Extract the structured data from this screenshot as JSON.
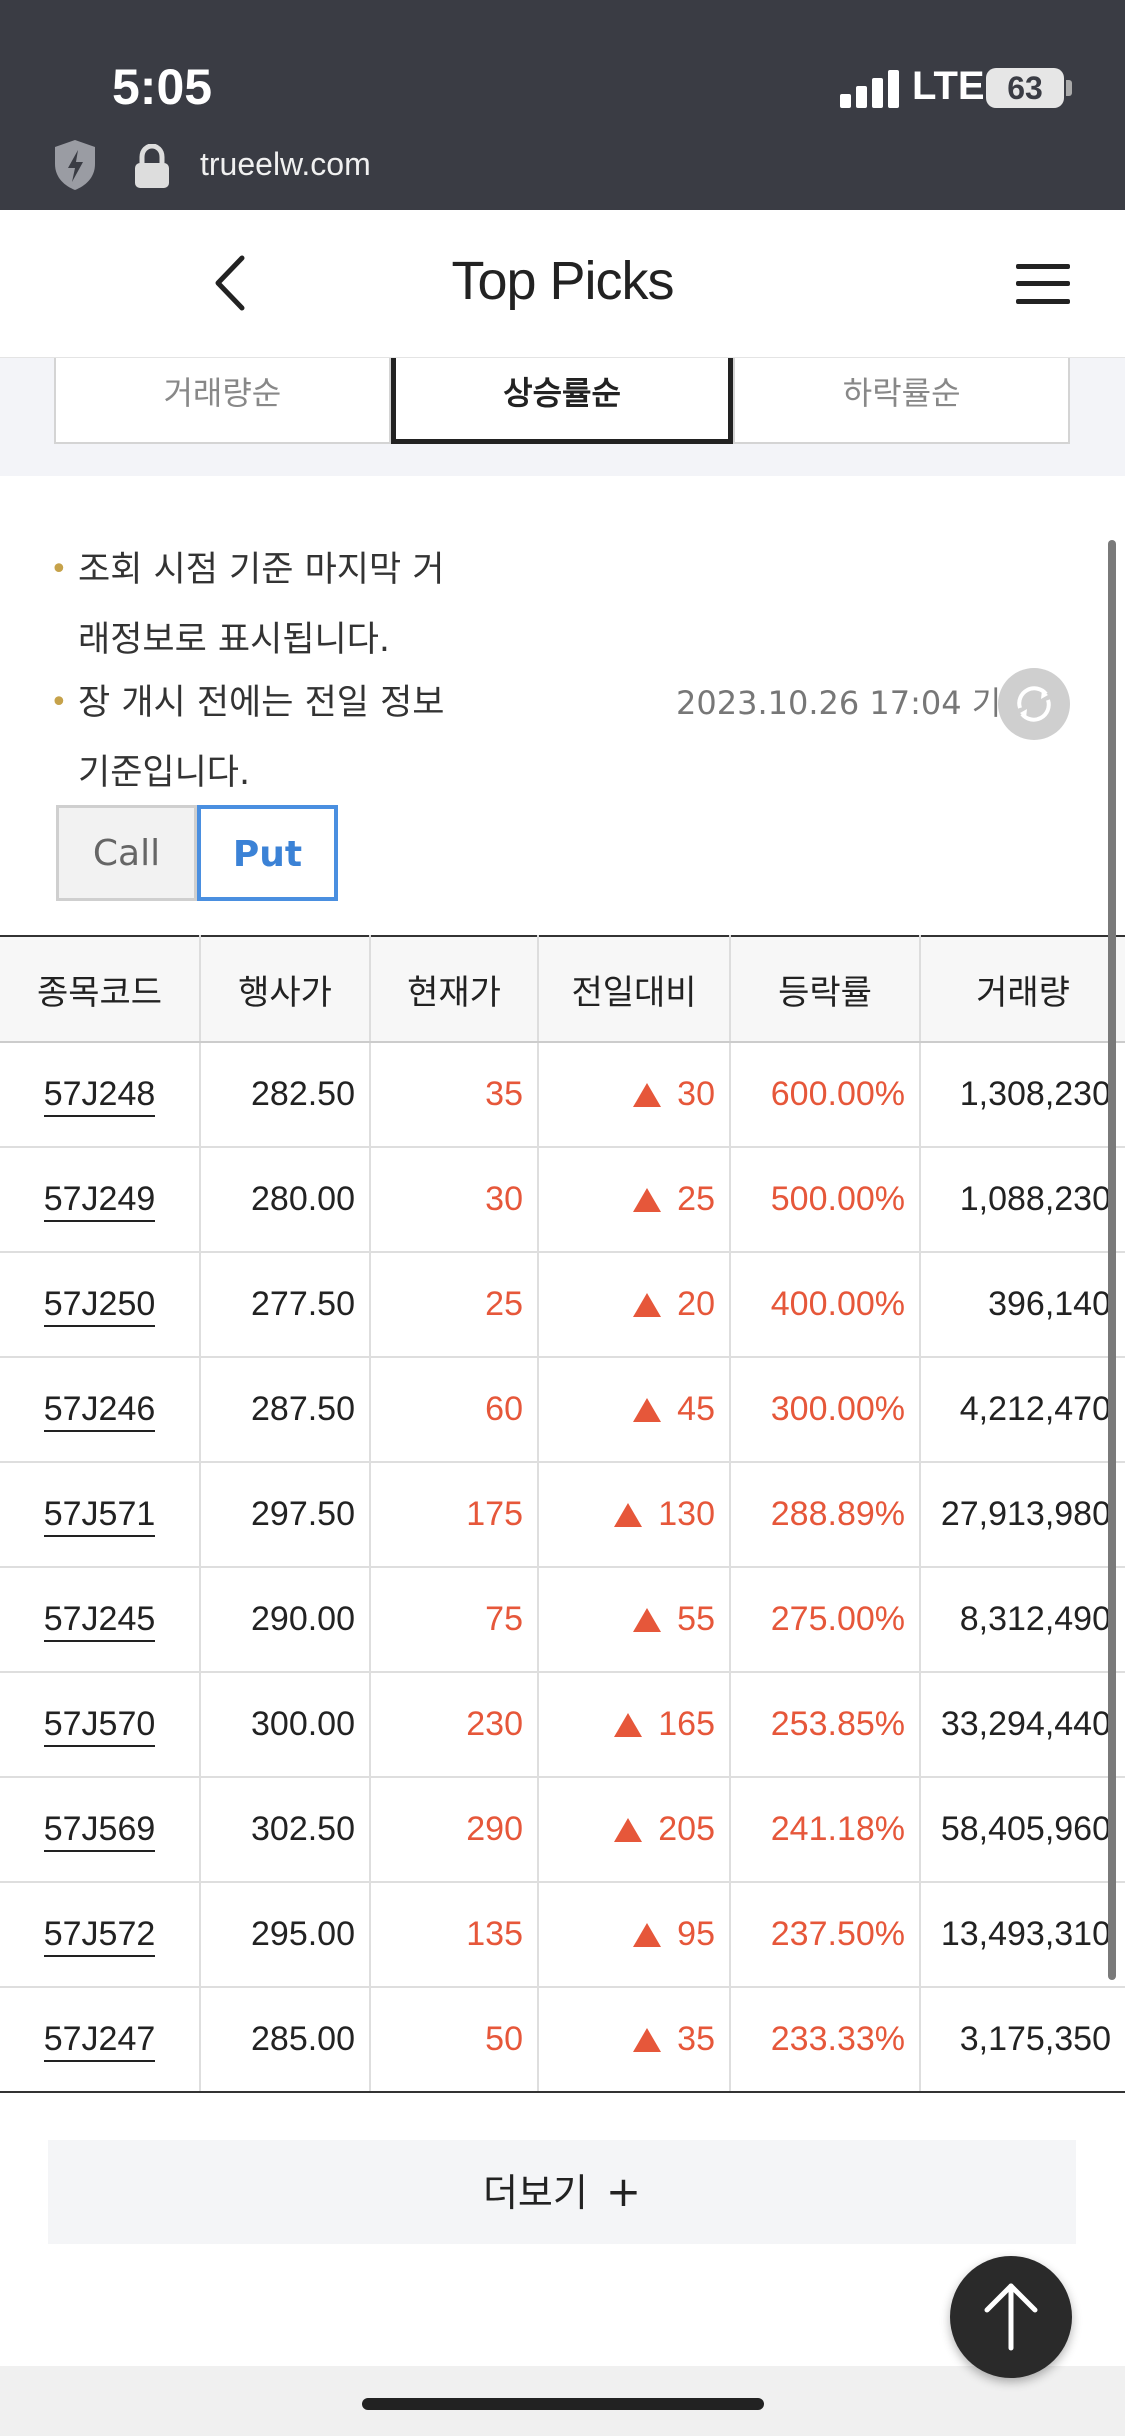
{
  "status_bar": {
    "time": "5:05",
    "network": "LTE",
    "battery": "63"
  },
  "browser": {
    "url": "trueelw.com"
  },
  "header": {
    "title": "Top Picks"
  },
  "sort_tabs": [
    {
      "label": "거래량순",
      "active": false
    },
    {
      "label": "상승률순",
      "active": true
    },
    {
      "label": "하락률순",
      "active": false
    }
  ],
  "info": {
    "notes": [
      {
        "line1": "조회 시점 기준 마지막 거",
        "line2": "래정보로 표시됩니다."
      },
      {
        "line1": "장 개시 전에는 전일 정보",
        "line2": "기준입니다."
      }
    ],
    "timestamp": "2023.10.26 17:04 기준"
  },
  "option_toggle": {
    "call": "Call",
    "put": "Put",
    "selected": "Put"
  },
  "table": {
    "headers": [
      "종목코드",
      "행사가",
      "현재가",
      "전일대비",
      "등락률",
      "거래량"
    ],
    "rows": [
      [
        "57J248",
        "282.50",
        "35",
        "30",
        "600.00%",
        "1,308,230"
      ],
      [
        "57J249",
        "280.00",
        "30",
        "25",
        "500.00%",
        "1,088,230"
      ],
      [
        "57J250",
        "277.50",
        "25",
        "20",
        "400.00%",
        "396,140"
      ],
      [
        "57J246",
        "287.50",
        "60",
        "45",
        "300.00%",
        "4,212,470"
      ],
      [
        "57J571",
        "297.50",
        "175",
        "130",
        "288.89%",
        "27,913,980"
      ],
      [
        "57J245",
        "290.00",
        "75",
        "55",
        "275.00%",
        "8,312,490"
      ],
      [
        "57J570",
        "300.00",
        "230",
        "165",
        "253.85%",
        "33,294,440"
      ],
      [
        "57J569",
        "302.50",
        "290",
        "205",
        "241.18%",
        "58,405,960"
      ],
      [
        "57J572",
        "295.00",
        "135",
        "95",
        "237.50%",
        "13,493,310"
      ],
      [
        "57J247",
        "285.00",
        "50",
        "35",
        "233.33%",
        "3,175,350"
      ]
    ]
  },
  "more_button": {
    "label": "더보기",
    "plus": "+"
  },
  "colors": {
    "up": "#e6573a",
    "put_accent": "#3b82d6",
    "status_bg": "#3a3c44"
  }
}
